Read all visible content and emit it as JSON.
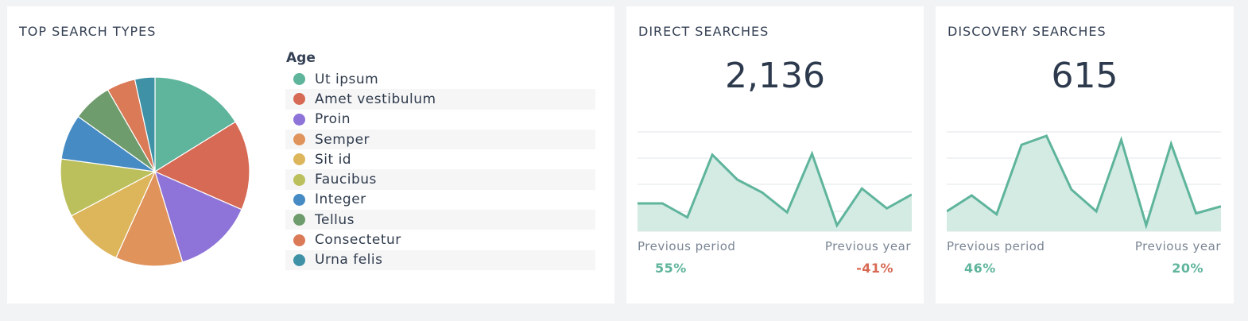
{
  "colors": {
    "accent": "#5fb49c",
    "accent_fill": "#d3ebe3",
    "negative": "#d86a55",
    "grid": "#e2e4e8"
  },
  "top_search_types": {
    "title": "TOP SEARCH TYPES",
    "legend_title": "Age",
    "items": [
      {
        "label": "Ut ipsum",
        "value": 16.5,
        "color": "#5fb49c"
      },
      {
        "label": "Amet vestibulum",
        "value": 15.7,
        "color": "#d66a55"
      },
      {
        "label": "Proin",
        "value": 14.0,
        "color": "#8e74d8"
      },
      {
        "label": "Semper",
        "value": 11.7,
        "color": "#e0935b"
      },
      {
        "label": "Sit id",
        "value": 10.7,
        "color": "#ddb65c"
      },
      {
        "label": "Faucibus",
        "value": 10.1,
        "color": "#bcc05c"
      },
      {
        "label": "Integer",
        "value": 7.9,
        "color": "#478bc4"
      },
      {
        "label": "Tellus",
        "value": 6.9,
        "color": "#6f9c6c"
      },
      {
        "label": "Consectetur",
        "value": 5.0,
        "color": "#da7a57"
      },
      {
        "label": "Urna felis",
        "value": 3.5,
        "color": "#3f92a6"
      }
    ]
  },
  "direct_searches": {
    "title": "DIRECT SEARCHES",
    "value": "2,136",
    "trend": [
      28,
      28,
      14,
      77,
      52,
      39,
      19,
      78,
      6,
      43,
      23,
      37
    ],
    "trend_max": 100,
    "previous_period_label": "Previous period",
    "previous_period_value": "55%",
    "previous_year_label": "Previous year",
    "previous_year_value": "-41%"
  },
  "discovery_searches": {
    "title": "DISCOVERY SEARCHES",
    "value": "615",
    "trend": [
      20,
      36,
      17,
      87,
      96,
      42,
      20,
      92,
      6,
      88,
      18,
      25
    ],
    "trend_max": 100,
    "previous_period_label": "Previous period",
    "previous_period_value": "46%",
    "previous_year_label": "Previous year",
    "previous_year_value": "20%"
  }
}
